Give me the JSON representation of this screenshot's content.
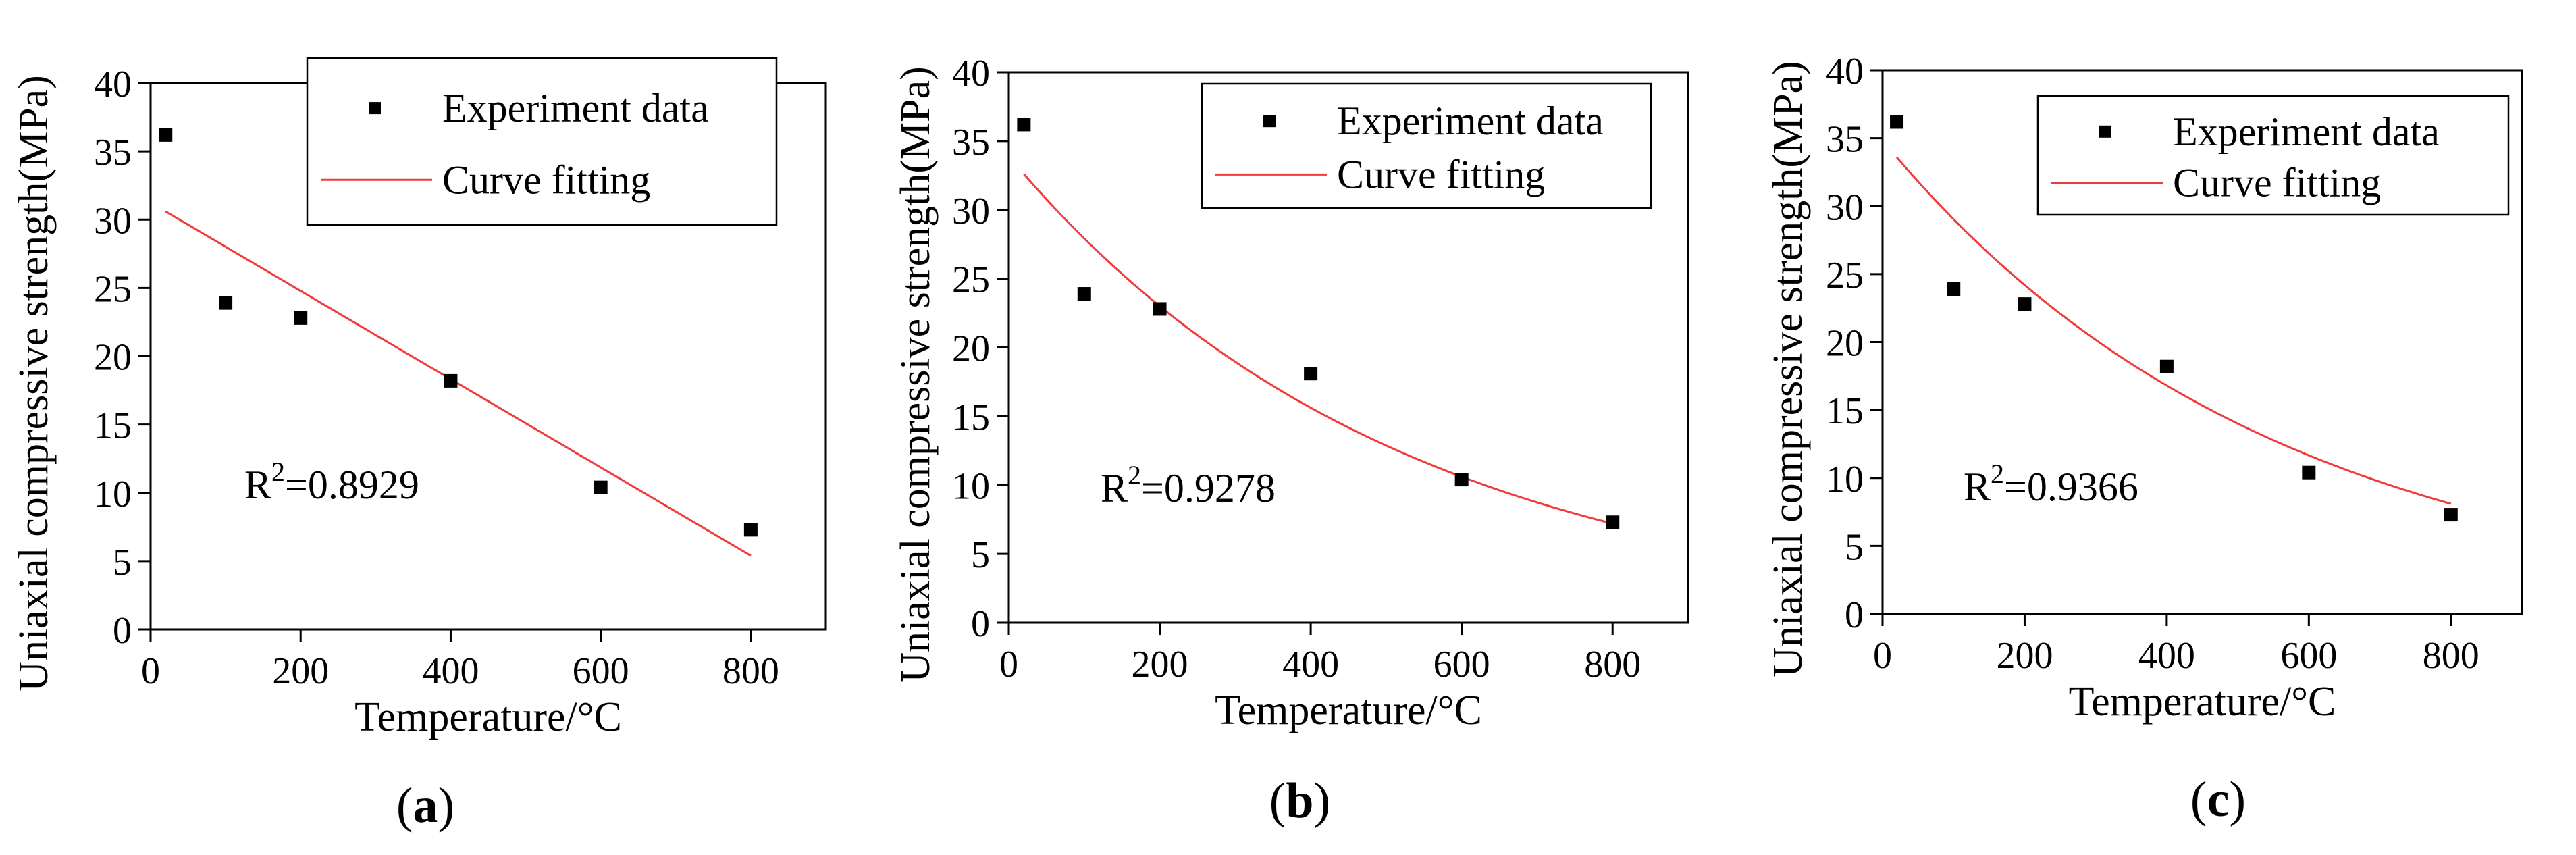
{
  "colors": {
    "marker": "#000000",
    "fit_line": "#f03c3c",
    "axis": "#000000",
    "background": "#ffffff"
  },
  "legend": {
    "marker_label": "Experiment data",
    "line_label": "Curve fitting"
  },
  "chart_data": [
    {
      "id": "a",
      "type": "scatter",
      "panel_label": "a",
      "xlabel": "Temperature/°C",
      "ylabel": "Uniaxial compressive strength(MPa)",
      "xlim": [
        0,
        900
      ],
      "ylim": [
        0,
        40
      ],
      "xticks": [
        0,
        200,
        400,
        600,
        800
      ],
      "yticks": [
        0,
        5,
        10,
        15,
        20,
        25,
        30,
        35,
        40
      ],
      "grid": false,
      "legend_position": "top-right",
      "series": [
        {
          "name": "Experiment data",
          "kind": "markers",
          "x": [
            20,
            100,
            200,
            400,
            600,
            800
          ],
          "y": [
            36.2,
            23.9,
            22.8,
            18.2,
            10.4,
            7.3
          ]
        },
        {
          "name": "Curve fitting",
          "kind": "linear",
          "x_range": [
            20,
            800
          ],
          "y_at_start": 30.6,
          "y_at_end": 5.4
        }
      ],
      "annotation": {
        "prefix": "R",
        "sup": "2",
        "value": "=0.8929"
      }
    },
    {
      "id": "b",
      "type": "scatter",
      "panel_label": "b",
      "xlabel": "Temperature/°C",
      "ylabel": "Uniaxial compressive strength(MPa)",
      "xlim": [
        0,
        900
      ],
      "ylim": [
        0,
        40
      ],
      "xticks": [
        0,
        200,
        400,
        600,
        800
      ],
      "yticks": [
        0,
        5,
        10,
        15,
        20,
        25,
        30,
        35,
        40
      ],
      "grid": false,
      "legend_position": "top-right",
      "series": [
        {
          "name": "Experiment data",
          "kind": "markers",
          "x": [
            20,
            100,
            200,
            400,
            600,
            800
          ],
          "y": [
            36.2,
            23.9,
            22.8,
            18.1,
            10.4,
            7.3
          ]
        },
        {
          "name": "Curve fitting",
          "kind": "exponential",
          "x_range": [
            20,
            800
          ],
          "y_at_start": 32.6,
          "y_at_end": 7.2
        }
      ],
      "annotation": {
        "prefix": "R",
        "sup": "2",
        "value": "=0.9278"
      }
    },
    {
      "id": "c",
      "type": "scatter",
      "panel_label": "c",
      "xlabel": "Temperature/°C",
      "ylabel": "Uniaxial compressive strength(MPa)",
      "xlim": [
        0,
        900
      ],
      "ylim": [
        0,
        40
      ],
      "xticks": [
        0,
        200,
        400,
        600,
        800
      ],
      "yticks": [
        0,
        5,
        10,
        15,
        20,
        25,
        30,
        35,
        40
      ],
      "grid": false,
      "legend_position": "top-right",
      "series": [
        {
          "name": "Experiment data",
          "kind": "markers",
          "x": [
            20,
            100,
            200,
            400,
            600,
            800
          ],
          "y": [
            36.2,
            23.9,
            22.8,
            18.2,
            10.4,
            7.3
          ]
        },
        {
          "name": "Curve fitting",
          "kind": "exponential",
          "x_range": [
            20,
            800
          ],
          "y_at_start": 33.6,
          "y_at_end": 8.1
        }
      ],
      "annotation": {
        "prefix": "R",
        "sup": "2",
        "value": "=0.9366"
      }
    }
  ]
}
